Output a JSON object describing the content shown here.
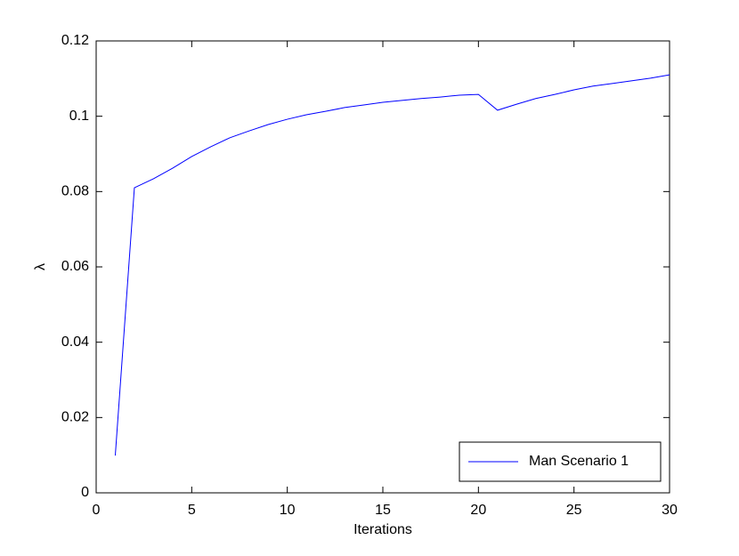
{
  "chart_data": {
    "type": "line",
    "x_label": "Iterations",
    "y_label": "λ",
    "x": [
      1,
      2,
      3,
      4,
      5,
      6,
      7,
      8,
      9,
      10,
      11,
      12,
      13,
      14,
      15,
      16,
      17,
      18,
      19,
      20,
      21,
      22,
      23,
      24,
      25,
      26,
      27,
      28,
      29,
      30
    ],
    "series": [
      {
        "name": "Man Scenario 1",
        "color": "#0000ff",
        "values": [
          0.0099,
          0.081,
          0.0834,
          0.0862,
          0.0893,
          0.0919,
          0.0943,
          0.0961,
          0.0978,
          0.0992,
          0.1004,
          0.1013,
          0.1023,
          0.103,
          0.1037,
          0.1042,
          0.1047,
          0.1051,
          0.1056,
          0.1058,
          0.1016,
          0.1032,
          0.1047,
          0.1058,
          0.107,
          0.108,
          0.1087,
          0.1094,
          0.1101,
          0.111
        ]
      }
    ],
    "xlim": [
      0,
      30
    ],
    "xticks": [
      0,
      5,
      10,
      15,
      20,
      25,
      30
    ],
    "ylim": [
      0,
      0.12
    ],
    "yticks": [
      0,
      0.02,
      0.04,
      0.06,
      0.08,
      0.1,
      0.12
    ],
    "legend": "lower right"
  }
}
